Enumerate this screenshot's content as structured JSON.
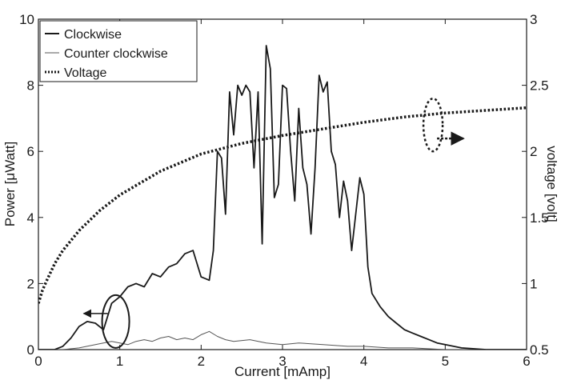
{
  "chart_data": {
    "type": "line",
    "xlabel": "Current [mAmp]",
    "ylabel_left": "Power [μWatt]",
    "ylabel_right": "voltage [volt]",
    "xlim": [
      0,
      6
    ],
    "ylim_left": [
      0,
      10
    ],
    "ylim_right": [
      0.5,
      3
    ],
    "x_ticks": [
      "0",
      "1",
      "2",
      "3",
      "4",
      "5",
      "6"
    ],
    "y_left_ticks": [
      "0",
      "2",
      "4",
      "6",
      "8",
      "10"
    ],
    "y_right_ticks": [
      "0.5",
      "1",
      "1.5",
      "2",
      "2.5",
      "3"
    ],
    "legend_position": "top-left",
    "series": [
      {
        "name": "Clockwise",
        "axis": "left",
        "style": "solid-thick",
        "color": "#1a1a1a",
        "x": [
          0,
          0.2,
          0.3,
          0.4,
          0.5,
          0.6,
          0.7,
          0.8,
          0.85,
          0.9,
          1.0,
          1.1,
          1.2,
          1.3,
          1.4,
          1.5,
          1.6,
          1.7,
          1.8,
          1.9,
          2.0,
          2.1,
          2.15,
          2.2,
          2.25,
          2.3,
          2.35,
          2.4,
          2.45,
          2.5,
          2.55,
          2.6,
          2.65,
          2.7,
          2.75,
          2.8,
          2.85,
          2.9,
          2.95,
          3.0,
          3.05,
          3.1,
          3.15,
          3.2,
          3.25,
          3.3,
          3.35,
          3.4,
          3.45,
          3.5,
          3.55,
          3.6,
          3.65,
          3.7,
          3.75,
          3.8,
          3.85,
          3.9,
          3.95,
          4.0,
          4.05,
          4.1,
          4.2,
          4.3,
          4.4,
          4.5,
          4.6,
          4.7,
          4.8,
          4.9,
          5.0,
          5.2,
          5.5,
          6.0
        ],
        "y": [
          0,
          0,
          0.1,
          0.35,
          0.7,
          0.85,
          0.8,
          0.6,
          1.0,
          1.4,
          1.6,
          1.9,
          2.0,
          1.9,
          2.3,
          2.2,
          2.5,
          2.6,
          2.9,
          3.0,
          2.2,
          2.1,
          3.0,
          6.0,
          5.8,
          4.1,
          7.8,
          6.5,
          8.0,
          7.7,
          8.0,
          7.8,
          5.5,
          7.8,
          3.2,
          9.2,
          8.5,
          4.6,
          5.0,
          8.0,
          7.9,
          6.0,
          4.5,
          7.3,
          5.5,
          5.0,
          3.5,
          5.5,
          8.3,
          7.8,
          8.1,
          6.0,
          5.6,
          4.0,
          5.1,
          4.5,
          3.0,
          4.1,
          5.2,
          4.7,
          2.5,
          1.7,
          1.3,
          1.0,
          0.8,
          0.6,
          0.5,
          0.4,
          0.3,
          0.2,
          0.15,
          0.05,
          0,
          0
        ]
      },
      {
        "name": "Counter clockwise",
        "axis": "left",
        "style": "solid-thin",
        "color": "#555555",
        "x": [
          0,
          0.3,
          0.5,
          0.7,
          0.8,
          0.9,
          1.0,
          1.1,
          1.2,
          1.3,
          1.4,
          1.5,
          1.6,
          1.7,
          1.8,
          1.9,
          2.0,
          2.1,
          2.2,
          2.3,
          2.4,
          2.6,
          2.8,
          3.0,
          3.2,
          3.5,
          3.8,
          4.0,
          4.3,
          4.6,
          5.0,
          5.5,
          6.0
        ],
        "y": [
          0,
          0,
          0.05,
          0.15,
          0.2,
          0.25,
          0.2,
          0.15,
          0.25,
          0.3,
          0.25,
          0.35,
          0.4,
          0.3,
          0.35,
          0.3,
          0.45,
          0.55,
          0.4,
          0.3,
          0.25,
          0.3,
          0.2,
          0.15,
          0.2,
          0.15,
          0.1,
          0.1,
          0.05,
          0.05,
          0,
          0,
          0
        ]
      },
      {
        "name": "Voltage",
        "axis": "right",
        "style": "dotted",
        "color": "#1a1a1a",
        "x": [
          0,
          0.05,
          0.1,
          0.2,
          0.3,
          0.5,
          0.75,
          1.0,
          1.5,
          2.0,
          2.5,
          3.0,
          3.5,
          4.0,
          4.5,
          5.0,
          5.5,
          6.0
        ],
        "y": [
          0.85,
          0.95,
          1.02,
          1.15,
          1.25,
          1.4,
          1.55,
          1.67,
          1.85,
          1.98,
          2.06,
          2.12,
          2.17,
          2.22,
          2.26,
          2.29,
          2.31,
          2.33
        ]
      }
    ],
    "annotations": [
      {
        "type": "ellipse",
        "x": 0.95,
        "y_left": 0.85,
        "axis": "left",
        "arrow": "left"
      },
      {
        "type": "ellipse-dotted",
        "x": 4.85,
        "y_right": 2.2,
        "axis": "right",
        "arrow": "right"
      }
    ]
  }
}
